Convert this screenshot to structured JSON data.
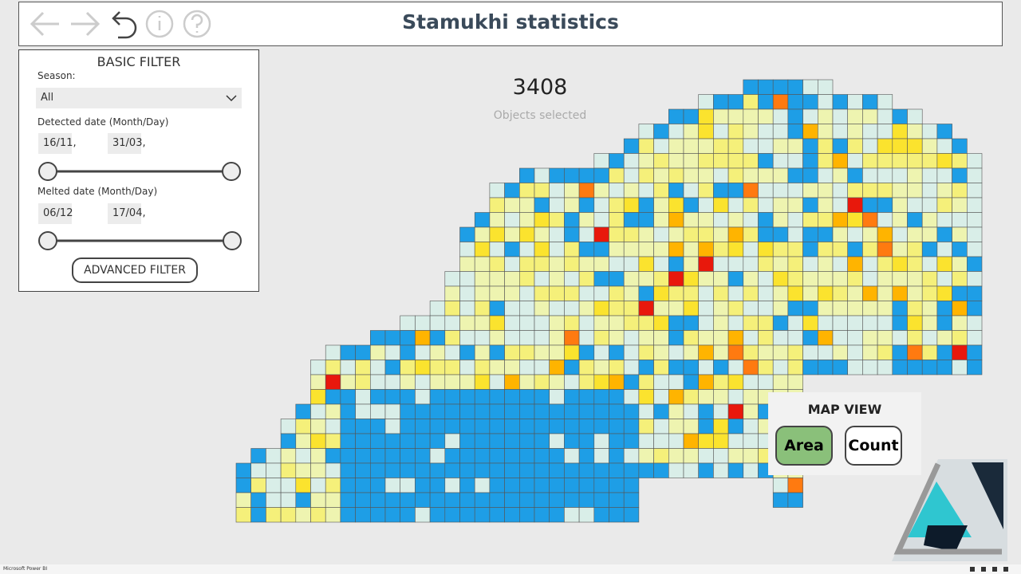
{
  "header": {
    "title": "Stamukhi statistics"
  },
  "basic_filter": {
    "title": "BASIC FILTER",
    "season_label": "Season:",
    "season_value": "All",
    "detected_label": "Detected date (Month/Day)",
    "detected_from": "16/11,",
    "detected_to": "31/03,",
    "melted_label": "Melted date (Month/Day)",
    "melted_from": "06/12",
    "melted_to": "17/04,",
    "advanced_button": "ADVANCED FILTER"
  },
  "summary": {
    "count": 3408,
    "label": "Objects selected"
  },
  "map_view": {
    "title": "MAP VIEW",
    "buttons": [
      "Area",
      "Count"
    ]
  },
  "footer": {
    "app": "Microsoft Power BI"
  }
}
